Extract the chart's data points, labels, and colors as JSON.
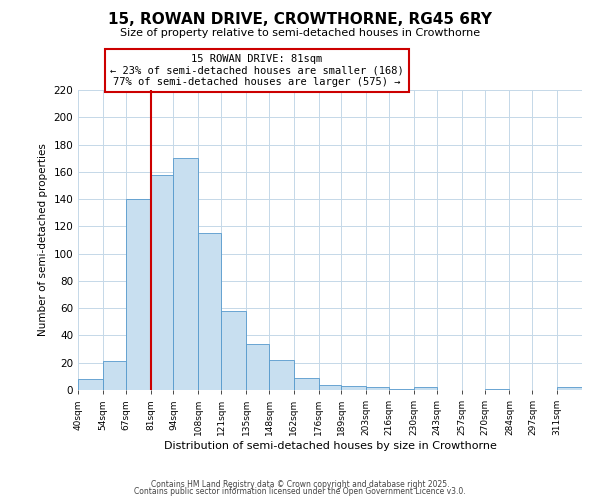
{
  "title": "15, ROWAN DRIVE, CROWTHORNE, RG45 6RY",
  "subtitle": "Size of property relative to semi-detached houses in Crowthorne",
  "xlabel": "Distribution of semi-detached houses by size in Crowthorne",
  "ylabel": "Number of semi-detached properties",
  "bin_labels": [
    "40sqm",
    "54sqm",
    "67sqm",
    "81sqm",
    "94sqm",
    "108sqm",
    "121sqm",
    "135sqm",
    "148sqm",
    "162sqm",
    "176sqm",
    "189sqm",
    "203sqm",
    "216sqm",
    "230sqm",
    "243sqm",
    "257sqm",
    "270sqm",
    "284sqm",
    "297sqm",
    "311sqm"
  ],
  "bin_edges": [
    40,
    54,
    67,
    81,
    94,
    108,
    121,
    135,
    148,
    162,
    176,
    189,
    203,
    216,
    230,
    243,
    257,
    270,
    284,
    297,
    311
  ],
  "counts": [
    8,
    21,
    140,
    158,
    170,
    115,
    58,
    34,
    22,
    9,
    4,
    3,
    2,
    1,
    2,
    0,
    0,
    1,
    0,
    0,
    2
  ],
  "bar_color": "#c8dff0",
  "bar_edge_color": "#5599cc",
  "marker_value": 81,
  "marker_color": "#cc0000",
  "annotation_title": "15 ROWAN DRIVE: 81sqm",
  "annotation_line1": "← 23% of semi-detached houses are smaller (168)",
  "annotation_line2": "77% of semi-detached houses are larger (575) →",
  "annotation_box_color": "#ffffff",
  "annotation_box_edge": "#cc0000",
  "ylim": [
    0,
    220
  ],
  "yticks": [
    0,
    20,
    40,
    60,
    80,
    100,
    120,
    140,
    160,
    180,
    200,
    220
  ],
  "footer1": "Contains HM Land Registry data © Crown copyright and database right 2025.",
  "footer2": "Contains public sector information licensed under the Open Government Licence v3.0."
}
